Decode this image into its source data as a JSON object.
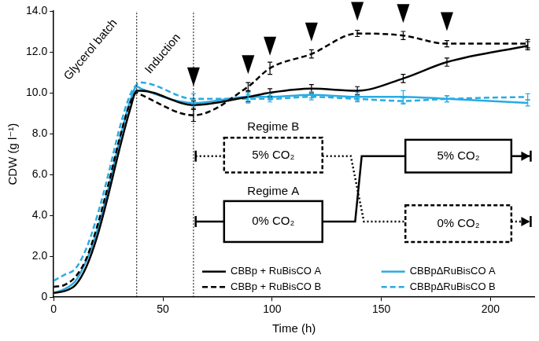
{
  "chart_data": {
    "type": "line",
    "x_label": "Time (h)",
    "y_label": "CDW (g l⁻¹)",
    "x": [
      0,
      5,
      10,
      15,
      20,
      25,
      30,
      35,
      38,
      40,
      64,
      89,
      99,
      118,
      139,
      160,
      180,
      217
    ],
    "xlim": [
      0,
      220
    ],
    "xticks": [
      0,
      50,
      100,
      150,
      200
    ],
    "ylim": [
      0,
      14
    ],
    "yticks": [
      0,
      {
        "value": 2,
        "label": "2.0"
      },
      {
        "value": 4,
        "label": "4.0"
      },
      {
        "value": 6,
        "label": "6.0"
      },
      {
        "value": 8,
        "label": "8.0"
      },
      {
        "value": 10,
        "label": "10.0"
      },
      {
        "value": 12,
        "label": "12.0"
      },
      {
        "value": 14,
        "label": "14.0"
      }
    ],
    "grid": false,
    "legend": "bottom",
    "series": [
      {
        "name": "CBBp + RuBisCO A",
        "color": "#000000",
        "line_style": "solid",
        "values": [
          0.2,
          0.3,
          0.6,
          1.5,
          3.0,
          5.0,
          7.2,
          9.2,
          10.1,
          10.1,
          9.4,
          9.8,
          10.0,
          10.2,
          10.1,
          10.7,
          11.5,
          12.3
        ],
        "errors": [
          null,
          null,
          null,
          null,
          null,
          null,
          null,
          null,
          null,
          null,
          0.2,
          0.25,
          0.2,
          0.2,
          0.2,
          0.2,
          0.2,
          0.2
        ]
      },
      {
        "name": "CBBp + RuBisCO B",
        "color": "#000000",
        "line_style": "dashed",
        "values": [
          0.5,
          0.6,
          1.0,
          1.9,
          3.5,
          5.5,
          7.7,
          9.5,
          10.0,
          9.9,
          8.9,
          10.3,
          11.2,
          11.9,
          12.9,
          12.8,
          12.4,
          12.4
        ],
        "errors": [
          null,
          null,
          null,
          null,
          null,
          null,
          null,
          null,
          null,
          null,
          0.3,
          0.2,
          0.3,
          0.2,
          0.15,
          0.2,
          0.15,
          0.2
        ]
      },
      {
        "name": "CBBpΔRuBisCO A",
        "color": "#29abe2",
        "line_style": "solid",
        "values": [
          0.2,
          0.4,
          0.8,
          1.8,
          3.3,
          5.3,
          7.6,
          9.6,
          10.3,
          10.2,
          9.5,
          9.8,
          9.8,
          9.9,
          9.8,
          9.8,
          9.7,
          9.5
        ],
        "errors": [
          null,
          null,
          null,
          null,
          null,
          null,
          null,
          null,
          null,
          null,
          0.2,
          0.2,
          0.15,
          0.15,
          0.2,
          0.3,
          0.15,
          0.15
        ]
      },
      {
        "name": "CBBpΔRuBisCO B",
        "color": "#29abe2",
        "line_style": "dashed",
        "values": [
          0.8,
          1.1,
          1.4,
          2.4,
          4.0,
          6.0,
          8.2,
          9.9,
          10.4,
          10.5,
          9.7,
          9.7,
          9.7,
          9.8,
          9.7,
          9.6,
          9.7,
          9.8
        ],
        "errors": [
          null,
          null,
          null,
          null,
          null,
          null,
          null,
          null,
          null,
          null,
          0.25,
          0.2,
          0.15,
          0.15,
          0.15,
          0.15,
          0.15,
          0.15
        ]
      }
    ],
    "vlines": [
      38,
      64
    ],
    "annotations": [
      "Glycerol batch",
      "Induction"
    ],
    "arrows_x": [
      64,
      89,
      99,
      118,
      139,
      160,
      180
    ],
    "regimes": [
      {
        "name": "Regime A",
        "phases": [
          "0% CO₂",
          "5% CO₂"
        ]
      },
      {
        "name": "Regime B",
        "phases": [
          "5% CO₂",
          "0% CO₂"
        ]
      }
    ]
  }
}
